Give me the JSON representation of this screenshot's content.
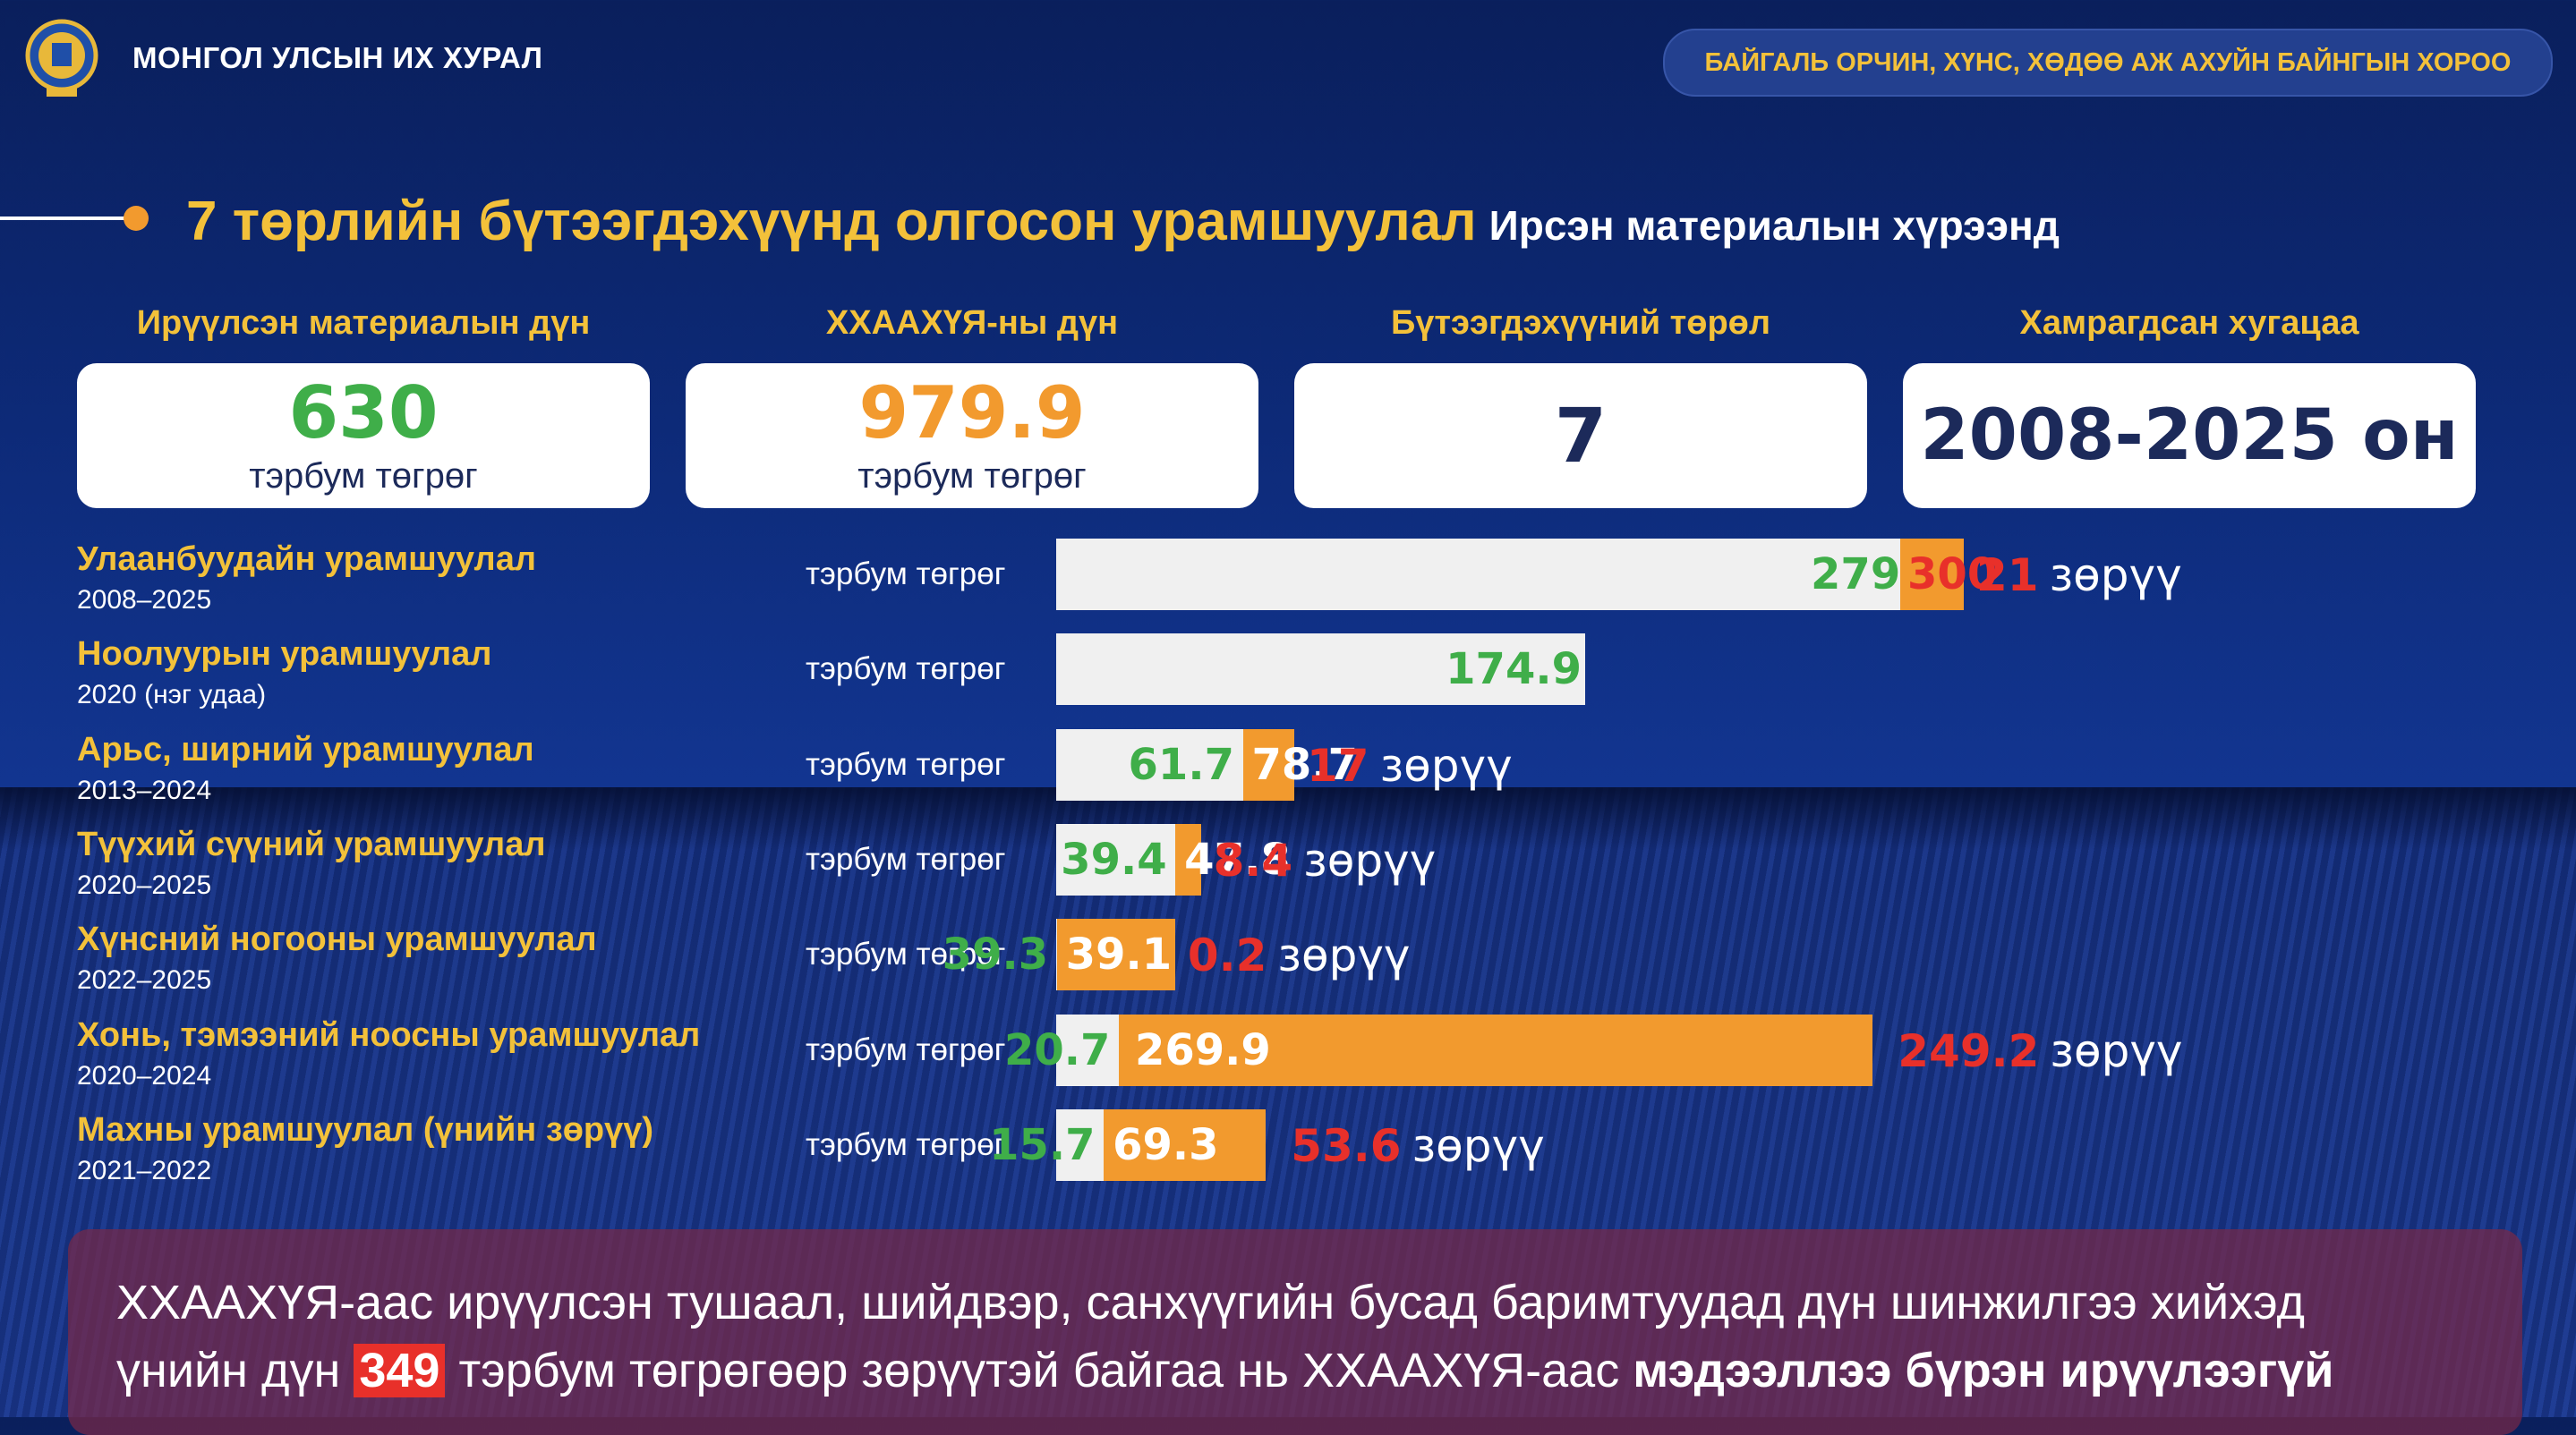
{
  "header": {
    "org_name": "МОНГОЛ УЛСЫН ИХ ХУРАЛ",
    "committee": "БАЙГАЛЬ ОРЧИН, ХҮНС, ХӨДӨӨ АЖ АХУЙН БАЙНГЫН ХОРОО"
  },
  "title": {
    "main": "7 төрлийн бүтээгдэхүүнд олгосон урамшуулал",
    "sub": "Ирсэн материалын хүрээнд"
  },
  "kpis": [
    {
      "label": "Ирүүлсэн материалын дүн",
      "value": "630",
      "unit": "тэрбум төгрөг",
      "color": "#3fae49"
    },
    {
      "label": "ХХААХҮЯ-ны дүн",
      "value": "979.9",
      "unit": "тэрбум төгрөг",
      "color": "#f29a2e"
    },
    {
      "label": "Бүтээгдэхүүний төрөл",
      "value": "7",
      "unit": "",
      "color": "#1c2a5a"
    },
    {
      "label": "Хамрагдсан хугацаа",
      "value": "2008-2025 он",
      "unit": "",
      "color": "#1c2a5a"
    }
  ],
  "colors": {
    "submitted": "#3fae49",
    "ministry": "#f29a2e",
    "difference": "#e8302a",
    "track": "#f0f0f0"
  },
  "chart_data": {
    "type": "bar",
    "unit_label": "тэрбум төгрөг",
    "diff_word": "зөрүү",
    "rows": [
      {
        "name": "Улаанбуудайн урамшуулал",
        "period": "2008–2025",
        "submitted": 279,
        "ministry": 300,
        "diff": 21,
        "submitted_label": "279",
        "ministry_label": "300",
        "diff_label": "21"
      },
      {
        "name": "Ноолуурын урамшуулал",
        "period": "2020 (нэг удаа)",
        "submitted": 174.9,
        "ministry": null,
        "diff": null,
        "submitted_label": "174.9",
        "ministry_label": "",
        "diff_label": ""
      },
      {
        "name": "Арьс, ширний урамшуулал",
        "period": "2013–2024",
        "submitted": 61.7,
        "ministry": 78.7,
        "diff": 17,
        "submitted_label": "61.7",
        "ministry_label": "78.7",
        "diff_label": "17"
      },
      {
        "name": "Түүхий сүүний урамшуулал",
        "period": "2020–2025",
        "submitted": 39.4,
        "ministry": 47.8,
        "diff": 8.4,
        "submitted_label": "39.4",
        "ministry_label": "47.8",
        "diff_label": "8.4"
      },
      {
        "name": "Хүнсний ногооны урамшуулал",
        "period": "2022–2025",
        "submitted": 39.3,
        "ministry": 39.1,
        "diff": 0.2,
        "submitted_label": "39.3",
        "ministry_label": "39.1",
        "diff_label": "0.2"
      },
      {
        "name": "Хонь, тэмээний ноосны урамшуулал",
        "period": "2020–2024",
        "submitted": 20.7,
        "ministry": 269.9,
        "diff": 249.2,
        "submitted_label": "20.7",
        "ministry_label": "269.9",
        "diff_label": "249.2"
      },
      {
        "name": "Махны урамшуулал (үнийн зөрүү)",
        "period": "2021–2022",
        "submitted": 15.7,
        "ministry": 69.3,
        "diff": 53.6,
        "submitted_label": "15.7",
        "ministry_label": "69.3",
        "diff_label": "53.6"
      }
    ]
  },
  "banner": {
    "part1": "ХХААХҮЯ-аас ирүүлсэн тушаал, шийдвэр, санхүүгийн бусад баримтуудад дүн шинжилгээ хийхэд",
    "part2": "үнийн дүн",
    "highlight": "349",
    "part3": "тэрбум төгрөгөөр зөрүүтэй байгаа нь ХХААХҮЯ-аас",
    "bold": "мэдээллээ бүрэн ирүүлээгүй"
  }
}
